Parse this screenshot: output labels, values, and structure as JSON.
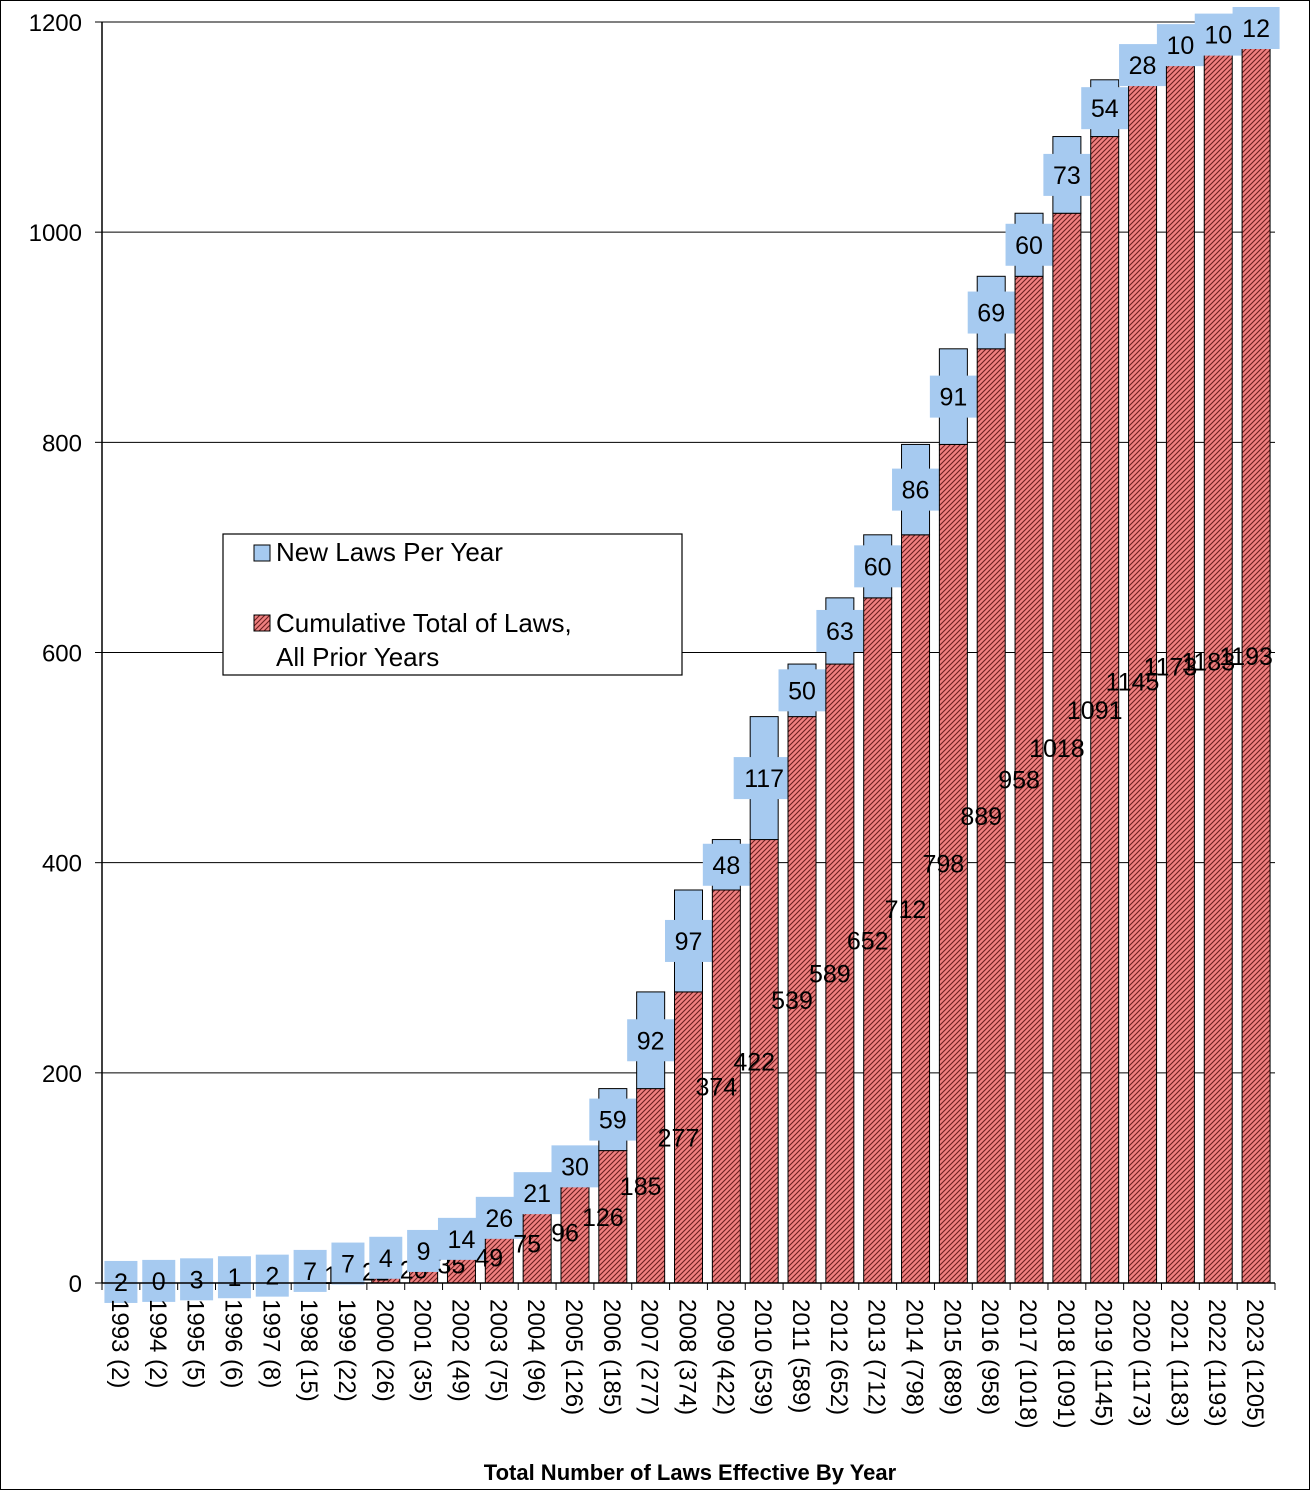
{
  "chart_data": {
    "type": "bar",
    "stacked": true,
    "title": "",
    "xlabel": "Total Number of Laws Effective By Year",
    "ylabel": "",
    "ylim": [
      0,
      1200
    ],
    "yticks": [
      0,
      200,
      400,
      600,
      800,
      1000,
      1200
    ],
    "grid": true,
    "legend_position": "center-left",
    "categories": [
      "1993 (2)",
      "1994 (2)",
      "1995 (5)",
      "1996 (6)",
      "1997 (8)",
      "1998 (15)",
      "1999 (22)",
      "2000 (26)",
      "2001 (35)",
      "2002 (49)",
      "2003 (75)",
      "2004 (96)",
      "2005 (126)",
      "2006 (185)",
      "2007 (277)",
      "2008 (374)",
      "2009 (422)",
      "2010 (539)",
      "2011 (589)",
      "2012 (652)",
      "2013 (712)",
      "2014 (798)",
      "2015 (889)",
      "2016 (958)",
      "2017 (1018)",
      "2018 (1091)",
      "2019 (1145)",
      "2020 (1173)",
      "2021 (1183)",
      "2022 (1193)",
      "2023 (1205)"
    ],
    "series": [
      {
        "name": "Cumulative Total of Laws, All Prior Years",
        "color": "#f08080",
        "values": [
          0,
          2,
          2,
          5,
          6,
          8,
          15,
          22,
          26,
          35,
          49,
          75,
          96,
          126,
          185,
          277,
          374,
          422,
          539,
          589,
          652,
          712,
          798,
          889,
          958,
          1018,
          1091,
          1145,
          1173,
          1183,
          1193
        ],
        "labels": [
          "0",
          "2",
          "2",
          "5",
          "6",
          "8",
          "15",
          "22",
          "26",
          "35",
          "49",
          "75",
          "96",
          "126",
          "185",
          "277",
          "374",
          "422",
          "539",
          "589",
          "652",
          "712",
          "798",
          "889",
          "958",
          "1018",
          "1091",
          "1145",
          "1173",
          "1183",
          "1193"
        ]
      },
      {
        "name": "New Laws Per Year",
        "color": "#a6caf0",
        "values": [
          2,
          0,
          3,
          1,
          2,
          7,
          7,
          4,
          9,
          14,
          26,
          21,
          30,
          59,
          92,
          97,
          48,
          117,
          50,
          63,
          60,
          86,
          91,
          69,
          60,
          73,
          54,
          28,
          10,
          10,
          12
        ],
        "labels": [
          "2",
          "0",
          "3",
          "1",
          "2",
          "7",
          "7",
          "4",
          "9",
          "14",
          "26",
          "21",
          "30",
          "59",
          "92",
          "97",
          "48",
          "117",
          "50",
          "63",
          "60",
          "86",
          "91",
          "69",
          "60",
          "73",
          "54",
          "28",
          "10",
          "10",
          "12"
        ]
      }
    ]
  }
}
